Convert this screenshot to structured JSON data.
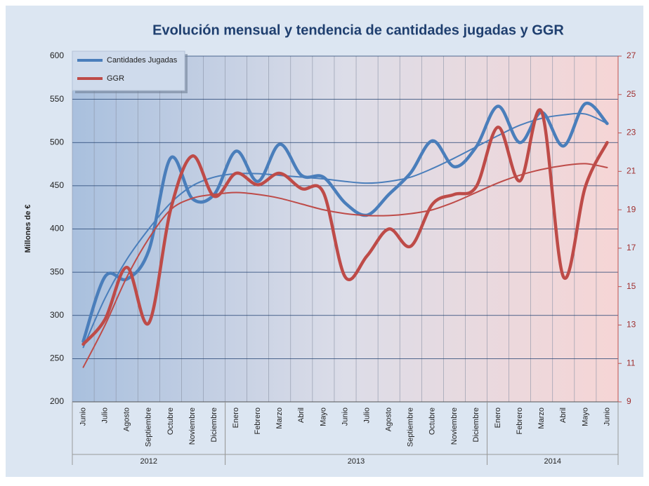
{
  "chart_data": {
    "type": "line",
    "title": "Evolución mensual y tendencia de cantidades jugadas y GGR",
    "ylabel": "Millones de €",
    "groups": [
      {
        "label": "2012",
        "categories": [
          "Junio",
          "Julio",
          "Agosto",
          "Septiembre",
          "Octubre",
          "Noviembre",
          "Diciembre"
        ]
      },
      {
        "label": "2013",
        "categories": [
          "Enero",
          "Febrero",
          "Marzo",
          "Abril",
          "Mayo",
          "Junio",
          "Julio",
          "Agosto",
          "Septiembre",
          "Octubre",
          "Noviembre",
          "Diciembre"
        ]
      },
      {
        "label": "2014",
        "categories": [
          "Enero",
          "Febrero",
          "Marzo",
          "Abril",
          "Mayo",
          "Junio"
        ]
      }
    ],
    "series": [
      {
        "name": "Cantidades Jugadas",
        "color": "#4a7ebb",
        "axis": "y",
        "values": [
          270,
          345,
          342,
          375,
          482,
          435,
          440,
          490,
          455,
          498,
          462,
          460,
          430,
          416,
          440,
          465,
          502,
          472,
          495,
          542,
          500,
          535,
          496,
          545,
          522
        ],
        "trend": [
          263,
          320,
          365,
          400,
          430,
          450,
          460,
          464,
          464,
          462,
          460,
          458,
          455,
          453,
          455,
          460,
          470,
          482,
          495,
          508,
          520,
          528,
          532,
          533,
          522
        ]
      },
      {
        "name": "GGR",
        "color": "#be4b48",
        "axis": "y2",
        "values": [
          12.0,
          13.3,
          16.0,
          13.1,
          19.0,
          21.8,
          19.7,
          20.9,
          20.3,
          20.9,
          20.1,
          19.9,
          15.5,
          16.6,
          18.0,
          17.1,
          19.3,
          19.8,
          20.2,
          23.3,
          20.5,
          24.1,
          15.5,
          20.2,
          22.5
        ],
        "trend": [
          10.8,
          13.0,
          15.5,
          17.5,
          19.0,
          19.6,
          19.8,
          19.9,
          19.8,
          19.6,
          19.3,
          19.0,
          18.8,
          18.7,
          18.7,
          18.8,
          19.0,
          19.4,
          19.9,
          20.4,
          20.8,
          21.1,
          21.3,
          21.4,
          21.2
        ]
      }
    ],
    "ylim": [
      200,
      600
    ],
    "yticks": [
      200,
      250,
      300,
      350,
      400,
      450,
      500,
      550,
      600
    ],
    "y2lim": [
      9,
      27
    ],
    "y2ticks": [
      9,
      11,
      13,
      15,
      17,
      19,
      21,
      23,
      25,
      27
    ],
    "grid": true,
    "legend": "upper left"
  }
}
